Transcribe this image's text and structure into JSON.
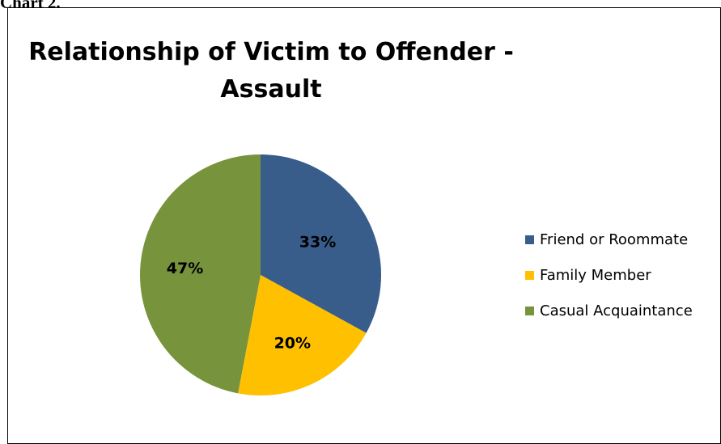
{
  "page": {
    "heading": "Chart 2."
  },
  "chart_data": {
    "type": "pie",
    "title_lines": [
      "Relationship of Victim to Offender -",
      "Assault"
    ],
    "categories": [
      "Friend or Roommate",
      "Family Member",
      "Casual Acquaintance"
    ],
    "values": [
      33,
      20,
      47
    ],
    "labels": [
      "33%",
      "20%",
      "47%"
    ],
    "colors": [
      "#385d8a",
      "#ffc000",
      "#77933c"
    ],
    "legend_position": "right",
    "start_angle_deg": 0,
    "direction": "clockwise"
  }
}
